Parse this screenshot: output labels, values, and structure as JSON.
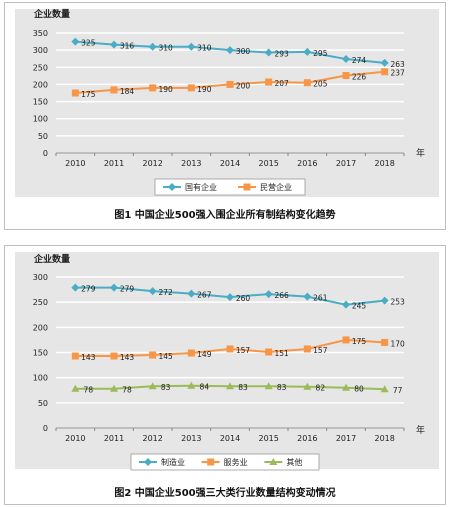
{
  "chart_data": [
    {
      "type": "line",
      "ylabel": "企业数量",
      "x_unit": "年",
      "categories": [
        "2010",
        "2011",
        "2012",
        "2013",
        "2014",
        "2015",
        "2016",
        "2017",
        "2018"
      ],
      "ylim": [
        0,
        350
      ],
      "yticks": [
        "0",
        "50",
        "100",
        "150",
        "200",
        "250",
        "300",
        "350"
      ],
      "series": [
        {
          "name": "国有企业",
          "color": "#4bacc6",
          "marker": "diamond",
          "values": [
            325,
            316,
            310,
            310,
            300,
            293,
            295,
            274,
            263
          ]
        },
        {
          "name": "民营企业",
          "color": "#f79646",
          "marker": "square",
          "values": [
            175,
            184,
            190,
            190,
            200,
            207,
            205,
            226,
            237
          ]
        }
      ],
      "caption": "图1  中国企业500强入围企业所有制结构变化趋势",
      "legend": "bottom"
    },
    {
      "type": "line",
      "ylabel": "企业数量",
      "x_unit": "年",
      "categories": [
        "2010",
        "2011",
        "2012",
        "2013",
        "2014",
        "2015",
        "2016",
        "2017",
        "2018"
      ],
      "ylim": [
        0,
        300
      ],
      "yticks": [
        "0",
        "50",
        "100",
        "150",
        "200",
        "250",
        "300"
      ],
      "series": [
        {
          "name": "制造业",
          "color": "#4bacc6",
          "marker": "diamond",
          "values": [
            279,
            279,
            272,
            267,
            260,
            266,
            261,
            245,
            253
          ]
        },
        {
          "name": "服务业",
          "color": "#f79646",
          "marker": "square",
          "values": [
            143,
            143,
            145,
            149,
            157,
            151,
            157,
            175,
            170
          ]
        },
        {
          "name": "其他",
          "color": "#9bbb59",
          "marker": "triangle",
          "values": [
            78,
            78,
            83,
            84,
            83,
            83,
            82,
            80,
            77
          ]
        }
      ],
      "caption": "图2  中国企业500强三大类行业数量结构变动情况",
      "legend": "bottom"
    }
  ]
}
